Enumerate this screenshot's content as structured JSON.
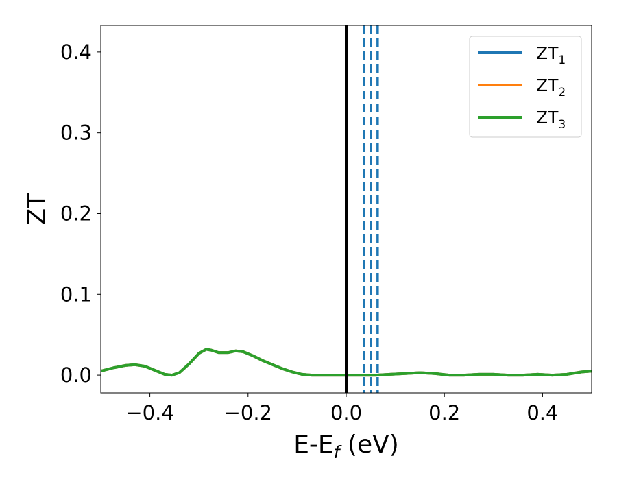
{
  "chart_data": {
    "type": "line",
    "title": "",
    "xlabel": "E-E",
    "xlabel_sub": "f",
    "xlabel_unit": " (eV)",
    "ylabel": "ZT",
    "xlim": [
      -0.5,
      0.5
    ],
    "ylim": [
      -0.022,
      0.433
    ],
    "x_ticks": [
      -0.4,
      -0.2,
      0.0,
      0.2,
      0.4
    ],
    "x_tick_labels": [
      "−0.4",
      "−0.2",
      "0.0",
      "0.2",
      "0.4"
    ],
    "y_ticks": [
      0.0,
      0.1,
      0.2,
      0.3,
      0.4
    ],
    "y_tick_labels": [
      "0.0",
      "0.1",
      "0.2",
      "0.3",
      "0.4"
    ],
    "grid": false,
    "legend_position": "top-right",
    "x": [
      -0.5,
      -0.475,
      -0.45,
      -0.43,
      -0.41,
      -0.39,
      -0.37,
      -0.355,
      -0.34,
      -0.32,
      -0.3,
      -0.285,
      -0.275,
      -0.26,
      -0.24,
      -0.225,
      -0.21,
      -0.19,
      -0.17,
      -0.15,
      -0.13,
      -0.11,
      -0.09,
      -0.07,
      -0.05,
      -0.03,
      0.0,
      0.03,
      0.06,
      0.09,
      0.12,
      0.15,
      0.18,
      0.21,
      0.24,
      0.27,
      0.3,
      0.33,
      0.36,
      0.39,
      0.42,
      0.45,
      0.48,
      0.5
    ],
    "series": [
      {
        "name": "ZT",
        "name_sub": "1",
        "color": "#1f77b4",
        "values": [
          0.005,
          0.009,
          0.012,
          0.013,
          0.011,
          0.006,
          0.001,
          0.0,
          0.003,
          0.014,
          0.027,
          0.032,
          0.031,
          0.028,
          0.028,
          0.03,
          0.029,
          0.024,
          0.018,
          0.013,
          0.008,
          0.004,
          0.001,
          0.0,
          0.0,
          0.0,
          0.0,
          0.0,
          0.0,
          0.001,
          0.002,
          0.003,
          0.002,
          0.0,
          0.0,
          0.001,
          0.001,
          0.0,
          0.0,
          0.001,
          0.0,
          0.001,
          0.004,
          0.005
        ]
      },
      {
        "name": "ZT",
        "name_sub": "2",
        "color": "#ff7f0e",
        "values": [
          0.005,
          0.009,
          0.012,
          0.013,
          0.011,
          0.006,
          0.001,
          0.0,
          0.003,
          0.014,
          0.027,
          0.032,
          0.031,
          0.028,
          0.028,
          0.03,
          0.029,
          0.024,
          0.018,
          0.013,
          0.008,
          0.004,
          0.001,
          0.0,
          0.0,
          0.0,
          0.0,
          0.0,
          0.0,
          0.001,
          0.002,
          0.003,
          0.002,
          0.0,
          0.0,
          0.001,
          0.001,
          0.0,
          0.0,
          0.001,
          0.0,
          0.001,
          0.004,
          0.005
        ]
      },
      {
        "name": "ZT",
        "name_sub": "3",
        "color": "#2ca02c",
        "values": [
          0.005,
          0.009,
          0.012,
          0.013,
          0.011,
          0.006,
          0.001,
          0.0,
          0.003,
          0.014,
          0.027,
          0.032,
          0.031,
          0.028,
          0.028,
          0.03,
          0.029,
          0.024,
          0.018,
          0.013,
          0.008,
          0.004,
          0.001,
          0.0,
          0.0,
          0.0,
          0.0,
          0.0,
          0.0,
          0.001,
          0.002,
          0.003,
          0.002,
          0.0,
          0.0,
          0.001,
          0.001,
          0.0,
          0.0,
          0.001,
          0.0,
          0.001,
          0.004,
          0.005
        ]
      }
    ],
    "vertical_lines": [
      {
        "x": 0.0,
        "style": "solid",
        "color": "#000000"
      },
      {
        "x": 0.036,
        "style": "dashed",
        "color": "#1f77b4"
      },
      {
        "x": 0.05,
        "style": "dashed",
        "color": "#1f77b4"
      },
      {
        "x": 0.064,
        "style": "dashed",
        "color": "#1f77b4"
      }
    ]
  }
}
